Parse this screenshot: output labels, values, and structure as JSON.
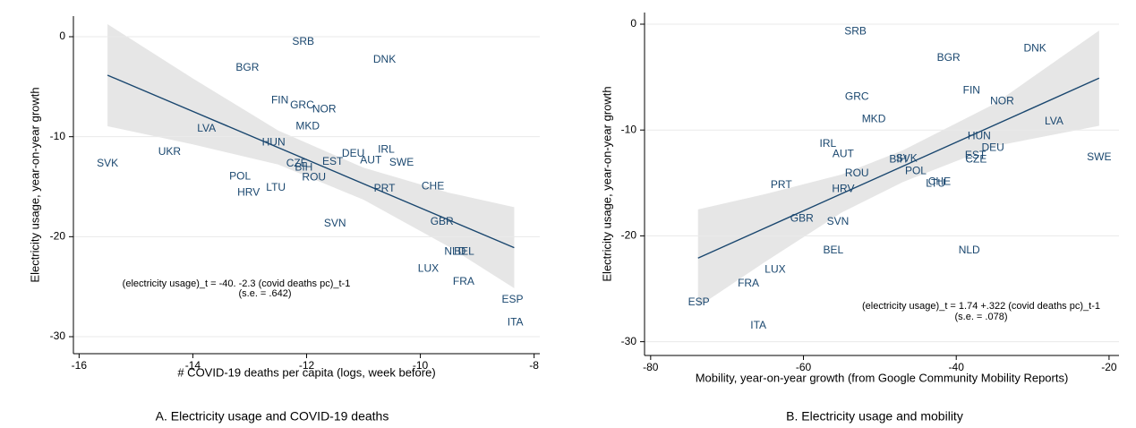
{
  "chart_data": [
    {
      "type": "scatter",
      "caption": "A. Electricity usage and COVID-19 deaths",
      "xlabel": "# COVID-19 deaths per capita (logs, week before)",
      "ylabel": "Electricity usage, year-on-year growth",
      "annotations": [
        "(electricity usage)_t = -40. -2.3 (covid deaths pc)_t-1",
        "(s.e. = .642)"
      ],
      "color": "#1a476f",
      "band_color": "#e6e6e6",
      "grid": true,
      "xlim": [
        -16.1,
        -7.9
      ],
      "ylim": [
        -31.7,
        2.06
      ],
      "xticks": [
        -16,
        -14,
        -12,
        -10,
        -8
      ],
      "yticks": [
        0,
        -10,
        -20,
        -30
      ],
      "labels": [
        "SVK",
        "UKR",
        "LVA",
        "BGR",
        "SRB",
        "DNK",
        "FIN",
        "GRC",
        "NOR",
        "MKD",
        "HUN",
        "DEU",
        "IRL",
        "AUT",
        "EST",
        "SWE",
        "CZE",
        "BIH",
        "POL",
        "ROU",
        "HRV",
        "LTU",
        "PRT",
        "CHE",
        "SVN",
        "GBR",
        "NLD",
        "BEL",
        "LUX",
        "FRA",
        "ESP",
        "ITA"
      ],
      "x": [
        -15.5,
        -14.41,
        -13.76,
        -13.04,
        -12.06,
        -10.63,
        -12.47,
        -12.08,
        -11.69,
        -11.98,
        -12.58,
        -11.18,
        -10.6,
        -10.87,
        -11.54,
        -10.33,
        -12.17,
        -12.05,
        -13.17,
        -11.87,
        -13.02,
        -12.54,
        -10.63,
        -9.78,
        -11.5,
        -9.62,
        -9.39,
        -9.23,
        -9.86,
        -9.24,
        -8.38,
        -8.33
      ],
      "values": [
        -12.7,
        -11.55,
        -9.2,
        -3.1,
        -0.5,
        -2.3,
        -6.4,
        -6.9,
        -7.3,
        -9.0,
        -10.6,
        -11.7,
        -11.3,
        -12.4,
        -12.5,
        -12.6,
        -12.7,
        -13.1,
        -14.0,
        -14.1,
        -15.6,
        -15.1,
        -15.2,
        -15.0,
        -18.7,
        -18.5,
        -21.5,
        -21.5,
        -23.2,
        -24.5,
        -26.3,
        -28.6
      ],
      "fit": {
        "x": [
          -15.5,
          -8.35
        ],
        "values": [
          -3.85,
          -21.1
        ]
      },
      "band": {
        "x": [
          -15.5,
          -14,
          -12.5,
          -11,
          -9.5,
          -8.35
        ],
        "upper": [
          1.25,
          -4.17,
          -9.38,
          -13.1,
          -15.6,
          -17.05
        ],
        "lower": [
          -8.95,
          -10.77,
          -12.78,
          -16.3,
          -21.0,
          -25.15
        ]
      }
    },
    {
      "type": "scatter",
      "caption": "B. Electricity usage and mobility",
      "xlabel": "Mobility, year-on-year growth (from Google Community Mobility Reports)",
      "ylabel": "Electricity usage, year-on-year growth",
      "annotations": [
        "(electricity usage)_t = 1.74 +.322 (covid deaths pc)_t-1",
        "(s.e. = .078)"
      ],
      "color": "#1a476f",
      "band_color": "#e6e6e6",
      "grid": true,
      "xlim": [
        -80.8,
        -18.7
      ],
      "ylim": [
        -31.3,
        1.1
      ],
      "xticks": [
        -80,
        -60,
        -40,
        -20
      ],
      "yticks": [
        0,
        -10,
        -20,
        -30
      ],
      "labels": [
        "SRB",
        "DNK",
        "BGR",
        "FIN",
        "NOR",
        "GRC",
        "MKD",
        "LVA",
        "HUN",
        "DEU",
        "IRL",
        "AUT",
        "EST",
        "CZE",
        "SWE",
        "SVK",
        "BIH",
        "ROU",
        "POL",
        "LTU",
        "CHE",
        "PRT",
        "HRV",
        "GBR",
        "SVN",
        "BEL",
        "NLD",
        "LUX",
        "FRA",
        "ESP",
        "ITA"
      ],
      "x": [
        -53.2,
        -29.7,
        -41.0,
        -38.0,
        -34.0,
        -53.0,
        -50.8,
        -27.2,
        -37.0,
        -35.2,
        -56.8,
        -54.8,
        -37.5,
        -37.4,
        -21.3,
        -46.5,
        -47.6,
        -53.0,
        -45.3,
        -42.7,
        -42.2,
        -62.9,
        -54.8,
        -60.2,
        -55.5,
        -56.1,
        -38.3,
        -63.7,
        -67.2,
        -73.7,
        -65.9
      ],
      "values": [
        -0.7,
        -2.3,
        -3.2,
        -6.3,
        -7.3,
        -6.9,
        -9.0,
        -9.2,
        -10.6,
        -11.7,
        -11.3,
        -12.3,
        -12.4,
        -12.8,
        -12.6,
        -12.7,
        -12.8,
        -14.1,
        -13.9,
        -15.1,
        -14.9,
        -15.2,
        -15.6,
        -18.4,
        -18.7,
        -21.4,
        -21.4,
        -23.2,
        -24.5,
        -26.3,
        -28.5
      ],
      "fit": {
        "x": [
          -73.8,
          -21.3
        ],
        "values": [
          -22.1,
          -5.1
        ]
      },
      "band": {
        "x": [
          -73.8,
          -65,
          -55,
          -47,
          -35,
          -21.3
        ],
        "upper": [
          -17.5,
          -16.05,
          -14.2,
          -11.92,
          -7.53,
          -0.6
        ],
        "lower": [
          -26.7,
          -22.45,
          -17.8,
          -14.92,
          -11.53,
          -9.6
        ]
      }
    }
  ]
}
